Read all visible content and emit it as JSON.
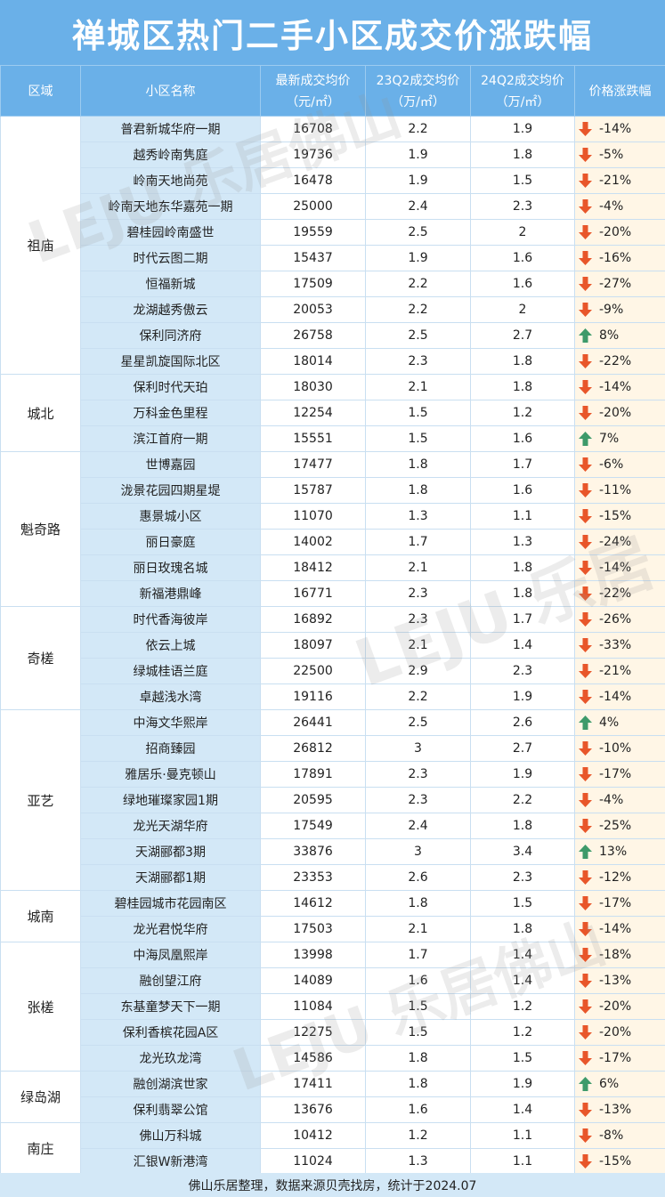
{
  "title": "禅城区热门二手小区成交价涨跌幅",
  "headers": {
    "area": "区域",
    "name": "小区名称",
    "latest": "最新成交均价",
    "latest_unit": "（元/㎡）",
    "q23": "23Q2成交均价",
    "q23_unit": "（万/㎡）",
    "q24": "24Q2成交均价",
    "q24_unit": "（万/㎡）",
    "change": "价格涨跌幅"
  },
  "colors": {
    "header": "#6ab0e8",
    "name_bg": "#d3e8f7",
    "change_bg": "#fff6e6",
    "down": "#e8562a",
    "up": "#3d9a6a"
  },
  "rows": [
    {
      "area": "祖庙",
      "name": "普君新城华府一期",
      "latest": "16708",
      "q23": "2.2",
      "q24": "1.9",
      "dir": "down",
      "change": "-14%"
    },
    {
      "area": "祖庙",
      "name": "越秀岭南隽庭",
      "latest": "19736",
      "q23": "1.9",
      "q24": "1.8",
      "dir": "down",
      "change": "-5%"
    },
    {
      "area": "祖庙",
      "name": "岭南天地尚苑",
      "latest": "16478",
      "q23": "1.9",
      "q24": "1.5",
      "dir": "down",
      "change": "-21%"
    },
    {
      "area": "祖庙",
      "name": "岭南天地东华嘉苑一期",
      "latest": "25000",
      "q23": "2.4",
      "q24": "2.3",
      "dir": "down",
      "change": "-4%"
    },
    {
      "area": "祖庙",
      "name": "碧桂园岭南盛世",
      "latest": "19559",
      "q23": "2.5",
      "q24": "2",
      "dir": "down",
      "change": "-20%"
    },
    {
      "area": "祖庙",
      "name": "时代云图二期",
      "latest": "15437",
      "q23": "1.9",
      "q24": "1.6",
      "dir": "down",
      "change": "-16%"
    },
    {
      "area": "祖庙",
      "name": "恒福新城",
      "latest": "17509",
      "q23": "2.2",
      "q24": "1.6",
      "dir": "down",
      "change": "-27%"
    },
    {
      "area": "祖庙",
      "name": "龙湖越秀傲云",
      "latest": "20053",
      "q23": "2.2",
      "q24": "2",
      "dir": "down",
      "change": "-9%"
    },
    {
      "area": "祖庙",
      "name": "保利同济府",
      "latest": "26758",
      "q23": "2.5",
      "q24": "2.7",
      "dir": "up",
      "change": "8%"
    },
    {
      "area": "祖庙",
      "name": "星星凯旋国际北区",
      "latest": "18014",
      "q23": "2.3",
      "q24": "1.8",
      "dir": "down",
      "change": "-22%"
    },
    {
      "area": "城北",
      "name": "保利时代天珀",
      "latest": "18030",
      "q23": "2.1",
      "q24": "1.8",
      "dir": "down",
      "change": "-14%"
    },
    {
      "area": "城北",
      "name": "万科金色里程",
      "latest": "12254",
      "q23": "1.5",
      "q24": "1.2",
      "dir": "down",
      "change": "-20%"
    },
    {
      "area": "城北",
      "name": "滨江首府一期",
      "latest": "15551",
      "q23": "1.5",
      "q24": "1.6",
      "dir": "up",
      "change": "7%"
    },
    {
      "area": "魁奇路",
      "name": "世博嘉园",
      "latest": "17477",
      "q23": "1.8",
      "q24": "1.7",
      "dir": "down",
      "change": "-6%"
    },
    {
      "area": "魁奇路",
      "name": "泷景花园四期星堤",
      "latest": "15787",
      "q23": "1.8",
      "q24": "1.6",
      "dir": "down",
      "change": "-11%"
    },
    {
      "area": "魁奇路",
      "name": "惠景城小区",
      "latest": "11070",
      "q23": "1.3",
      "q24": "1.1",
      "dir": "down",
      "change": "-15%"
    },
    {
      "area": "魁奇路",
      "name": "丽日豪庭",
      "latest": "14002",
      "q23": "1.7",
      "q24": "1.3",
      "dir": "down",
      "change": "-24%"
    },
    {
      "area": "魁奇路",
      "name": "丽日玫瑰名城",
      "latest": "18412",
      "q23": "2.1",
      "q24": "1.8",
      "dir": "down",
      "change": "-14%"
    },
    {
      "area": "魁奇路",
      "name": "新福港鼎峰",
      "latest": "16771",
      "q23": "2.3",
      "q24": "1.8",
      "dir": "down",
      "change": "-22%"
    },
    {
      "area": "奇槎",
      "name": "时代香海彼岸",
      "latest": "16892",
      "q23": "2.3",
      "q24": "1.7",
      "dir": "down",
      "change": "-26%"
    },
    {
      "area": "奇槎",
      "name": "依云上城",
      "latest": "18097",
      "q23": "2.1",
      "q24": "1.4",
      "dir": "down",
      "change": "-33%"
    },
    {
      "area": "奇槎",
      "name": "绿城桂语兰庭",
      "latest": "22500",
      "q23": "2.9",
      "q24": "2.3",
      "dir": "down",
      "change": "-21%"
    },
    {
      "area": "奇槎",
      "name": "卓越浅水湾",
      "latest": "19116",
      "q23": "2.2",
      "q24": "1.9",
      "dir": "down",
      "change": "-14%"
    },
    {
      "area": "亚艺",
      "name": "中海文华熙岸",
      "latest": "26441",
      "q23": "2.5",
      "q24": "2.6",
      "dir": "up",
      "change": "4%"
    },
    {
      "area": "亚艺",
      "name": "招商臻园",
      "latest": "26812",
      "q23": "3",
      "q24": "2.7",
      "dir": "down",
      "change": "-10%"
    },
    {
      "area": "亚艺",
      "name": "雅居乐·曼克顿山",
      "latest": "17891",
      "q23": "2.3",
      "q24": "1.9",
      "dir": "down",
      "change": "-17%"
    },
    {
      "area": "亚艺",
      "name": "绿地璀璨家园1期",
      "latest": "20595",
      "q23": "2.3",
      "q24": "2.2",
      "dir": "down",
      "change": "-4%"
    },
    {
      "area": "亚艺",
      "name": "龙光天湖华府",
      "latest": "17549",
      "q23": "2.4",
      "q24": "1.8",
      "dir": "down",
      "change": "-25%"
    },
    {
      "area": "亚艺",
      "name": "天湖郦都3期",
      "latest": "33876",
      "q23": "3",
      "q24": "3.4",
      "dir": "up",
      "change": "13%"
    },
    {
      "area": "亚艺",
      "name": "天湖郦都1期",
      "latest": "23353",
      "q23": "2.6",
      "q24": "2.3",
      "dir": "down",
      "change": "-12%"
    },
    {
      "area": "城南",
      "name": "碧桂园城市花园南区",
      "latest": "14612",
      "q23": "1.8",
      "q24": "1.5",
      "dir": "down",
      "change": "-17%"
    },
    {
      "area": "城南",
      "name": "龙光君悦华府",
      "latest": "17503",
      "q23": "2.1",
      "q24": "1.8",
      "dir": "down",
      "change": "-14%"
    },
    {
      "area": "张槎",
      "name": "中海凤凰熙岸",
      "latest": "13998",
      "q23": "1.7",
      "q24": "1.4",
      "dir": "down",
      "change": "-18%"
    },
    {
      "area": "张槎",
      "name": "融创望江府",
      "latest": "14089",
      "q23": "1.6",
      "q24": "1.4",
      "dir": "down",
      "change": "-13%"
    },
    {
      "area": "张槎",
      "name": "东基童梦天下一期",
      "latest": "11084",
      "q23": "1.5",
      "q24": "1.2",
      "dir": "down",
      "change": "-20%"
    },
    {
      "area": "张槎",
      "name": "保利香槟花园A区",
      "latest": "12275",
      "q23": "1.5",
      "q24": "1.2",
      "dir": "down",
      "change": "-20%"
    },
    {
      "area": "张槎",
      "name": "龙光玖龙湾",
      "latest": "14586",
      "q23": "1.8",
      "q24": "1.5",
      "dir": "down",
      "change": "-17%"
    },
    {
      "area": "绿岛湖",
      "name": "融创湖滨世家",
      "latest": "17411",
      "q23": "1.8",
      "q24": "1.9",
      "dir": "up",
      "change": "6%"
    },
    {
      "area": "绿岛湖",
      "name": "保利翡翠公馆",
      "latest": "13676",
      "q23": "1.6",
      "q24": "1.4",
      "dir": "down",
      "change": "-13%"
    },
    {
      "area": "南庄",
      "name": "佛山万科城",
      "latest": "10412",
      "q23": "1.2",
      "q24": "1.1",
      "dir": "down",
      "change": "-8%"
    },
    {
      "area": "南庄",
      "name": "汇银W新港湾",
      "latest": "11024",
      "q23": "1.3",
      "q24": "1.1",
      "dir": "down",
      "change": "-15%"
    }
  ],
  "footer": "佛山乐居整理，数据来源贝壳找房，统计于2024.07",
  "watermarks": [
    "LEJU 乐居佛山",
    "LEJU 乐居",
    "LEJU 乐居佛山"
  ]
}
